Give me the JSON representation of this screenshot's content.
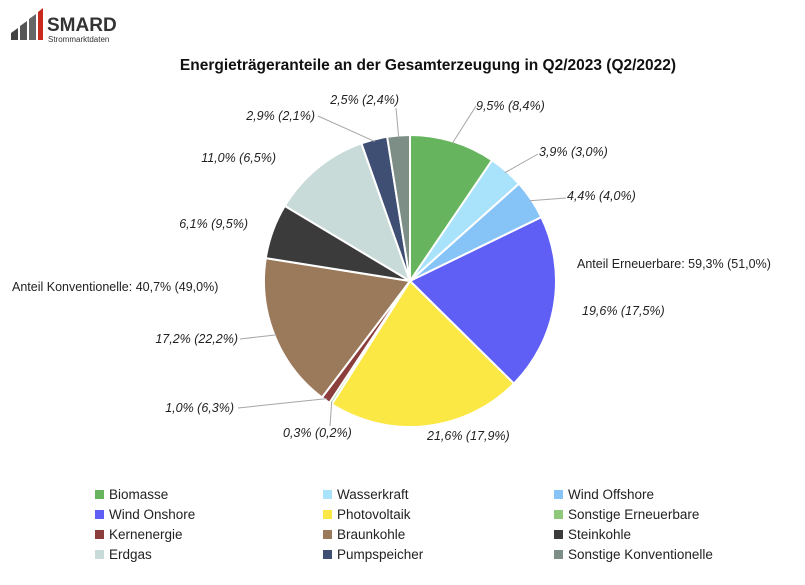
{
  "logo": {
    "name": "SMARD",
    "tagline": "Strommarktdaten"
  },
  "chart_data": {
    "type": "pie",
    "title": "Energieträgeranteile an der Gesamterzeugung in Q2/2023 (Q2/2022)",
    "slices": [
      {
        "name": "Biomasse",
        "value": 9.5,
        "label": "9,5% (8,4%)",
        "color": "#66b45e"
      },
      {
        "name": "Wasserkraft",
        "value": 3.9,
        "label": "3,9% (3,0%)",
        "color": "#a9e2fb"
      },
      {
        "name": "Wind Offshore",
        "value": 4.4,
        "label": "4,4% (4,0%)",
        "color": "#86c4f8"
      },
      {
        "name": "Wind Onshore",
        "value": 19.6,
        "label": "19,6% (17,5%)",
        "color": "#5f5ff5"
      },
      {
        "name": "Photovoltaik",
        "value": 21.6,
        "label": "21,6% (17,9%)",
        "color": "#fbe844"
      },
      {
        "name": "Sonstige Erneuerbare",
        "value": 0.3,
        "label": "0,3% (0,2%)",
        "color": "#8ec97b"
      },
      {
        "name": "Kernenergie",
        "value": 1.0,
        "label": "1,0% (6,3%)",
        "color": "#8b3e3b"
      },
      {
        "name": "Braunkohle",
        "value": 17.2,
        "label": "17,2% (22,2%)",
        "color": "#9b7a5c"
      },
      {
        "name": "Steinkohle",
        "value": 6.1,
        "label": "6,1% (9,5%)",
        "color": "#3b3b3b"
      },
      {
        "name": "Erdgas",
        "value": 11.0,
        "label": "11,0% (6,5%)",
        "color": "#c9dbd9"
      },
      {
        "name": "Pumpspeicher",
        "value": 2.9,
        "label": "2,9% (2,1%)",
        "color": "#3f4f73"
      },
      {
        "name": "Sonstige Konventionelle",
        "value": 2.5,
        "label": "2,5% (2,4%)",
        "color": "#7d8e86"
      }
    ],
    "group_labels": {
      "renewable": "Anteil Erneuerbare: 59,3% (51,0%)",
      "conventional": "Anteil Konventionelle: 40,7% (49,0%)"
    },
    "legend_position": "bottom"
  }
}
